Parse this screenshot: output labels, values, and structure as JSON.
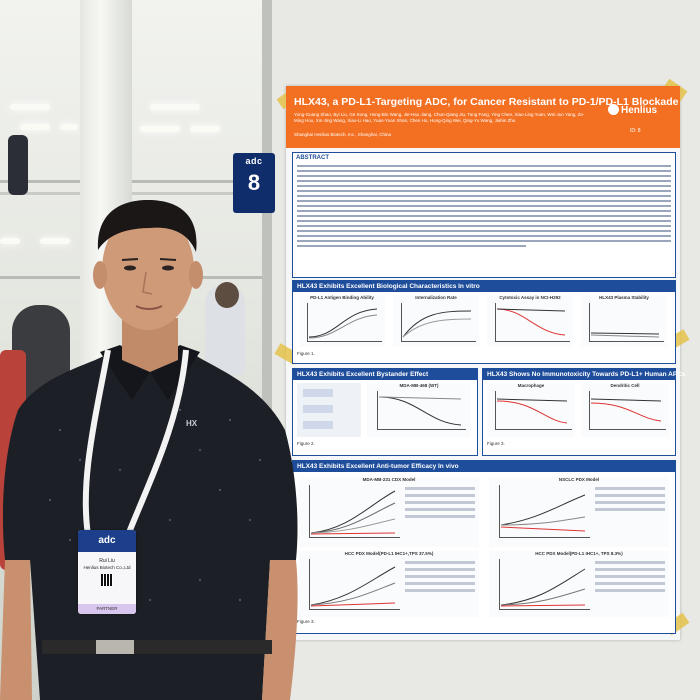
{
  "sign": {
    "brand": "adc",
    "number": "8"
  },
  "poster": {
    "title": "HLX43, a PD-L1-Targeting ADC, for Cancer Resistant to PD-1/PD-L1 Blockade",
    "logo": "Henlius",
    "poster_id": "ID: 8",
    "authors": "Yong-Guang Shao, Byi Liu, Ge Song, Hong-Bin Wang, Jie-Hao Jiang, Chun-Qiang Jiu, Tang Fang, Ying Chen, Xiao-Ling Yuan, Wei-Jun Yang, Ze-Ming Hou, Xin-Jing Wang, Xiao-Li Hao, Yuan-Yuan Shan, Chen Hu, Hong-Qing Wei, Qing-Yu Wang, Jiahin Zhu",
    "affiliation": "Shanghai Henlius Biotech, Inc., Shanghai, China",
    "abstract_heading": "ABSTRACT",
    "sections": {
      "s1": "HLX43 Exhibits Excellent Biological Characteristics In vitro",
      "s2": "HLX43 Exhibits Excellent Bystander Effect",
      "s3": "HLX43 Shows No Immunotoxicity Towards PD-L1+ Human APCs",
      "s4": "HLX43 Exhibits Excellent Anti-tumor Efficacy In vivo"
    },
    "panels": {
      "p1": "PD-L1 Antigen Binding Ability",
      "p2": "Internalization Rate",
      "p3": "Cytotoxic Assay in NCI-H292",
      "p4": "HLX43 Plasma Stability",
      "p5": "MDA-MB-468 (WT)",
      "p6": "Macrophage",
      "p7": "Dendritic Cell",
      "p8": "MDA-MB-231 CDX Model",
      "p9": "NSCLC PDX Model",
      "p10": "HCC PDX Model(PD-L1 IHC1+,TPS 37.5%)",
      "p11": "HCC PDX Model(PD-L1 IHC1+, TPS 8.3%)"
    },
    "captions": {
      "c1": "Figure 1.",
      "c2": "Figure 2.",
      "c3": "Figure 3.",
      "c4": "Figure 3."
    }
  },
  "badge": {
    "brand": "adc",
    "name": "Rui Liu",
    "company": "Henlius Biotech Co.,Ltd",
    "type": "PARTNER"
  }
}
